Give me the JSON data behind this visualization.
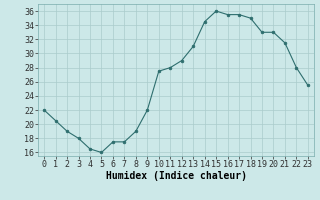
{
  "x": [
    0,
    1,
    2,
    3,
    4,
    5,
    6,
    7,
    8,
    9,
    10,
    11,
    12,
    13,
    14,
    15,
    16,
    17,
    18,
    19,
    20,
    21,
    22,
    23
  ],
  "y": [
    22,
    20.5,
    19,
    18,
    16.5,
    16,
    17.5,
    17.5,
    19,
    22,
    27.5,
    28,
    29,
    31,
    34.5,
    36,
    35.5,
    35.5,
    35,
    33,
    33,
    31.5,
    28,
    25.5
  ],
  "line_color": "#2e6e6e",
  "marker_color": "#2e6e6e",
  "bg_color": "#cce8e8",
  "grid_color": "#aacccc",
  "xlabel": "Humidex (Indice chaleur)",
  "ylim": [
    15.5,
    37
  ],
  "xlim": [
    -0.5,
    23.5
  ],
  "yticks": [
    16,
    18,
    20,
    22,
    24,
    26,
    28,
    30,
    32,
    34,
    36
  ],
  "xticks": [
    0,
    1,
    2,
    3,
    4,
    5,
    6,
    7,
    8,
    9,
    10,
    11,
    12,
    13,
    14,
    15,
    16,
    17,
    18,
    19,
    20,
    21,
    22,
    23
  ],
  "xtick_labels": [
    "0",
    "1",
    "2",
    "3",
    "4",
    "5",
    "6",
    "7",
    "8",
    "9",
    "10",
    "11",
    "12",
    "13",
    "14",
    "15",
    "16",
    "17",
    "18",
    "19",
    "20",
    "21",
    "22",
    "23"
  ],
  "xlabel_fontsize": 7,
  "tick_fontsize": 6
}
